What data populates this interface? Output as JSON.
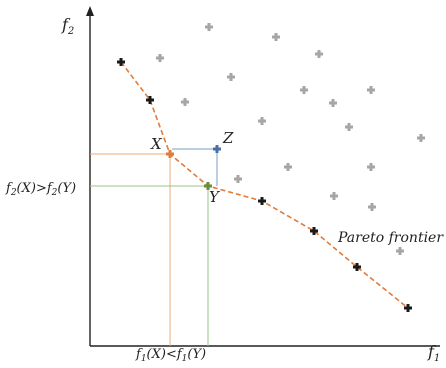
{
  "diagram": {
    "axes": {
      "y_label_main": "f",
      "y_label_sub": "2",
      "x_label_main": "f",
      "x_label_sub": "1",
      "color": "#222222"
    },
    "labels": {
      "x_point": "X",
      "y_point": "Y",
      "z_point": "Z",
      "pareto": "Pareto frontier",
      "f2_compare": [
        "f",
        "2",
        "(X)>f",
        "2",
        "(Y)"
      ],
      "f1_compare": [
        "f",
        "1",
        "(X)<f",
        "1",
        "(Y)"
      ]
    },
    "colors": {
      "pareto_point": "#1a1a1a",
      "dominated_point": "#a6a6a6",
      "frontier_line": "#e07b39",
      "x_point": "#e07b39",
      "y_point": "#6a8f3a",
      "z_point": "#4a6fa5",
      "x_guide": "#f0a87a",
      "y_guide": "#9bc48a",
      "z_guide": "#7a9cc8"
    },
    "icons": {
      "point_marker": "plus-marker",
      "axis_arrow": "arrow-up-icon"
    }
  }
}
